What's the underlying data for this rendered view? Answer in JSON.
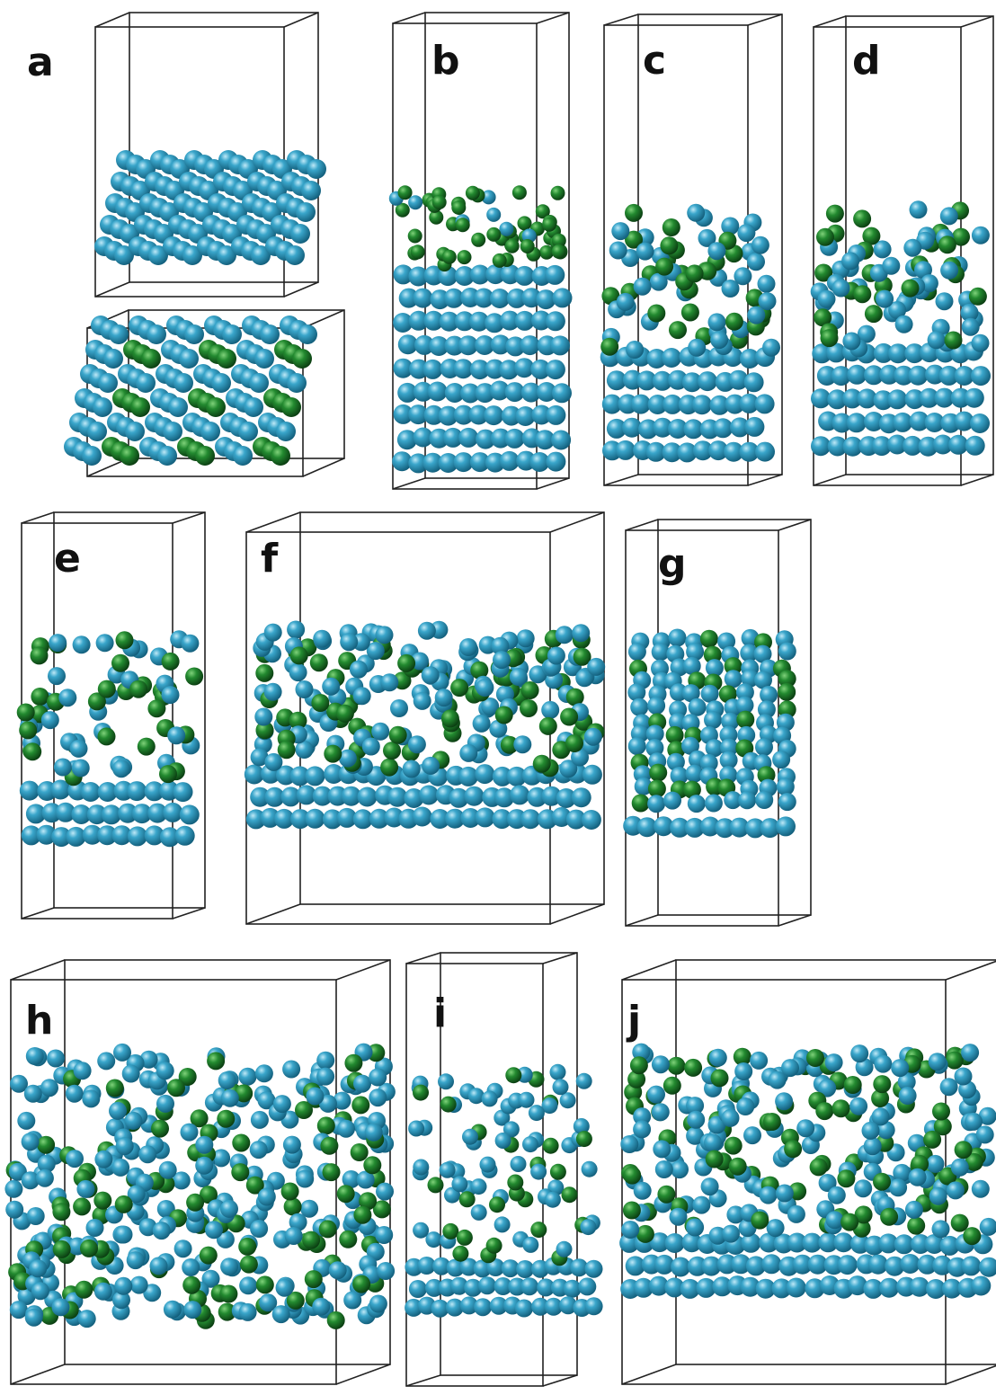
{
  "colors": {
    "background": "#ffffff",
    "box_edge": "#222222",
    "blue_sphere": "#2a95ba",
    "blue_sphere_light": "#8fd3ea",
    "blue_sphere_dark": "#176b8a",
    "green_sphere": "#1f7a2a",
    "green_sphere_light": "#5fbd5f",
    "green_sphere_dark": "#0f4d16"
  },
  "panels": [
    {
      "label": "a",
      "state": "crystalline stacked layers, blue only (top) and blue with green (bottom)"
    },
    {
      "label": "b",
      "state": "ordered blue layers with green layer on top"
    },
    {
      "label": "c",
      "state": "partially mixed top region"
    },
    {
      "label": "d",
      "state": "mixed top region"
    },
    {
      "label": "e",
      "state": "mixed top region"
    },
    {
      "label": "f",
      "state": "mixed wide slab"
    },
    {
      "label": "g",
      "state": "vertical chains"
    },
    {
      "label": "h",
      "state": "fully disordered"
    },
    {
      "label": "i",
      "state": "layered with green"
    },
    {
      "label": "j",
      "state": "mixed wide slab"
    }
  ]
}
